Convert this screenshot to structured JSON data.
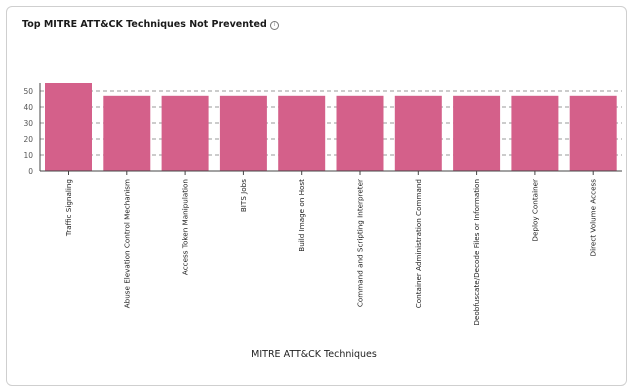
{
  "card": {
    "title": "Top MITRE ATT&CK Techniques Not Prevented",
    "info_icon": "info-circle-icon"
  },
  "chart_data": {
    "type": "bar",
    "title": "Top MITRE ATT&CK Techniques Not Prevented",
    "xlabel": "MITRE ATT&CK Techniques",
    "ylabel": "",
    "ylim": [
      0,
      55
    ],
    "yticks": [
      0,
      10,
      20,
      30,
      40,
      50
    ],
    "grid": "horizontal dashed",
    "bar_color": "#d4608a",
    "categories": [
      "Traffic Signaling",
      "Abuse Elevation Control Mechanism",
      "Access Token Manipulation",
      "BITS Jobs",
      "Build Image on Host",
      "Command and Scripting Interpreter",
      "Container Administration Command",
      "Deobfuscate/Decode Files or Information",
      "Deploy Container",
      "Direct Volume Access"
    ],
    "values": [
      55,
      47,
      47,
      47,
      47,
      47,
      47,
      47,
      47,
      47
    ]
  }
}
